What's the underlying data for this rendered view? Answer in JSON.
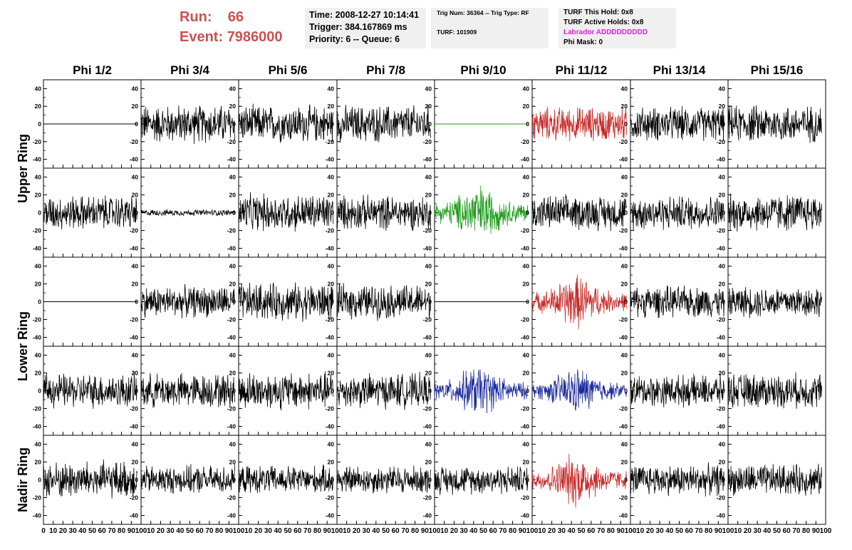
{
  "header": {
    "run_label": "Run:",
    "run_value": "66",
    "event_label": "Event:",
    "event_value": "7986000",
    "time": "Time: 2008-12-27 10:14:41",
    "trigger": "Trigger: 384.167869 ms",
    "priority": "Priority: 6 -- Queue: 6",
    "trig_num": "Trig Num: 36364 -- Trig Type: RF",
    "turf": "TURF: 101909",
    "turf_this_hold": "TURF This Hold: 0x8",
    "turf_active_holds": "TURF Active Holds: 0x8",
    "labrador": "Labrador ADDDDDDDDD",
    "phi_mask": "Phi Mask: 0"
  },
  "colors": {
    "run_text": "#c8524e",
    "labrador": "#e020e0",
    "panel_bg": "#f0f0f0",
    "black": "#000000",
    "green": "#1a9a1a",
    "red": "#c62a2a",
    "blue": "#1a2a9a"
  },
  "chart_data": {
    "type": "line",
    "columns": [
      "Phi 1/2",
      "Phi 3/4",
      "Phi 5/6",
      "Phi 7/8",
      "Phi 9/10",
      "Phi 11/12",
      "Phi 13/14",
      "Phi 15/16"
    ],
    "ring_labels": [
      "Upper Ring",
      "Lower Ring",
      "Nadir Ring"
    ],
    "rows_per_ring": [
      2,
      2,
      1
    ],
    "xlim": [
      0,
      100
    ],
    "ylim": [
      -50,
      50
    ],
    "x_tick_labels": [
      "0",
      "10",
      "20",
      "30",
      "40",
      "50",
      "60",
      "70",
      "80",
      "90",
      "100"
    ],
    "y_tick_labels": [
      "40",
      "20",
      "0",
      "-20",
      "-40"
    ],
    "grid": false,
    "traces": [
      [
        {
          "color": "black",
          "amp": 0
        },
        {
          "color": "black",
          "amp": 25
        },
        {
          "color": "black",
          "amp": 24
        },
        {
          "color": "black",
          "amp": 24
        },
        {
          "color": "green",
          "amp": 0
        },
        {
          "color": "red",
          "amp": 22
        },
        {
          "color": "black",
          "amp": 22
        },
        {
          "color": "black",
          "amp": 24
        }
      ],
      [
        {
          "color": "black",
          "amp": 22
        },
        {
          "color": "black",
          "amp": 4
        },
        {
          "color": "black",
          "amp": 24
        },
        {
          "color": "black",
          "amp": 22
        },
        {
          "color": "green",
          "amp": 27,
          "burst": true
        },
        {
          "color": "black",
          "amp": 22
        },
        {
          "color": "black",
          "amp": 22
        },
        {
          "color": "black",
          "amp": 24
        }
      ],
      [
        {
          "color": "black",
          "amp": 0
        },
        {
          "color": "black",
          "amp": 20
        },
        {
          "color": "black",
          "amp": 24
        },
        {
          "color": "black",
          "amp": 22
        },
        {
          "color": "black",
          "amp": 0
        },
        {
          "color": "red",
          "amp": 26,
          "burst": true
        },
        {
          "color": "black",
          "amp": 20
        },
        {
          "color": "black",
          "amp": 20
        }
      ],
      [
        {
          "color": "black",
          "amp": 22
        },
        {
          "color": "black",
          "amp": 22
        },
        {
          "color": "black",
          "amp": 24
        },
        {
          "color": "black",
          "amp": 22
        },
        {
          "color": "blue",
          "amp": 24,
          "burst": true
        },
        {
          "color": "blue",
          "amp": 22,
          "burst": true
        },
        {
          "color": "black",
          "amp": 20
        },
        {
          "color": "black",
          "amp": 22
        }
      ],
      [
        {
          "color": "black",
          "amp": 24
        },
        {
          "color": "black",
          "amp": 18
        },
        {
          "color": "black",
          "amp": 18
        },
        {
          "color": "black",
          "amp": 18
        },
        {
          "color": "black",
          "amp": 18
        },
        {
          "color": "red",
          "amp": 26,
          "burst": true
        },
        {
          "color": "black",
          "amp": 20
        },
        {
          "color": "black",
          "amp": 20
        }
      ]
    ]
  }
}
